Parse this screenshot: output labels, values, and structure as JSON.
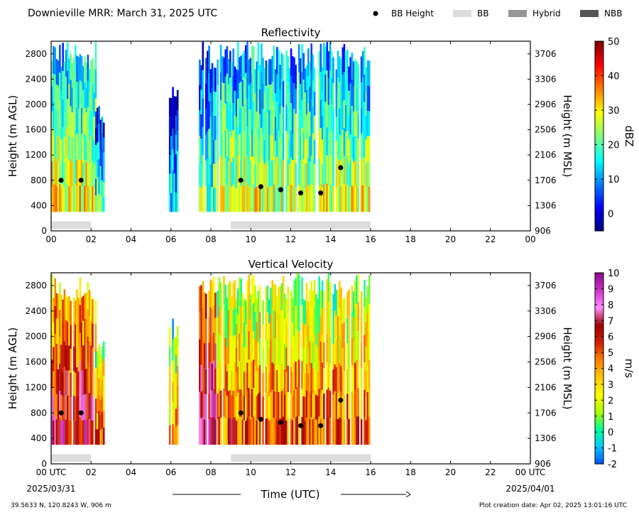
{
  "header": {
    "title": "Downieville MRR:  March 31, 2025 UTC",
    "legend": [
      {
        "label": "BB Height",
        "kind": "dot",
        "color": "#000000"
      },
      {
        "label": "BB",
        "kind": "bar",
        "color": "#dcdcdc"
      },
      {
        "label": "Hybrid",
        "kind": "bar",
        "color": "#969696"
      },
      {
        "label": "NBB",
        "kind": "bar",
        "color": "#555555"
      }
    ]
  },
  "footer": {
    "location": "39.5633 N, 120.8243 W, 906 m",
    "creation_date": "Plot creation date: Apr 02, 2025 13:01:16 UTC",
    "start_date": "2025/03/31",
    "end_date": "2025/04/01",
    "xlabel": "Time (UTC)"
  },
  "chart_data": [
    {
      "type": "heatmap",
      "title": "Reflectivity",
      "ylabel": "Height (m AGL)",
      "ylabel_right": "Height (m MSL)",
      "xlim": [
        0,
        24
      ],
      "ylim": [
        0,
        3000
      ],
      "x_ticks": [
        "00",
        "02",
        "04",
        "06",
        "08",
        "10",
        "12",
        "14",
        "16",
        "18",
        "20",
        "22",
        "00"
      ],
      "y_ticks": [
        "0",
        "400",
        "800",
        "1200",
        "1600",
        "2000",
        "2400",
        "2800"
      ],
      "y_ticks_right": [
        "906",
        "1306",
        "1706",
        "2106",
        "2506",
        "2906",
        "3306",
        "3706"
      ],
      "colorbar": {
        "label": "dBZ",
        "min": -5,
        "max": 50,
        "ticks": [
          "0",
          "10",
          "20",
          "30",
          "40",
          "50"
        ],
        "stops": [
          "#00007f",
          "#0000ff",
          "#007fff",
          "#00ffff",
          "#7fff7f",
          "#ffff00",
          "#ff7f00",
          "#ff0000",
          "#7f0000"
        ]
      },
      "bb_height_points": [
        {
          "x": 0.5,
          "y": 800
        },
        {
          "x": 1.5,
          "y": 800
        },
        {
          "x": 9.5,
          "y": 800
        },
        {
          "x": 10.5,
          "y": 700
        },
        {
          "x": 11.5,
          "y": 650
        },
        {
          "x": 12.5,
          "y": 600
        },
        {
          "x": 13.5,
          "y": 600
        },
        {
          "x": 14.5,
          "y": 1000
        }
      ],
      "bb_bars": [
        {
          "start": 0.0,
          "end": 2.0
        },
        {
          "start": 9.0,
          "end": 16.0
        }
      ],
      "echo_segments": [
        {
          "start": 0.0,
          "end": 2.2,
          "top": 3000,
          "value": 20
        },
        {
          "start": 2.2,
          "end": 2.6,
          "top": 2000,
          "value": 10
        },
        {
          "start": 5.9,
          "end": 6.3,
          "top": 2300,
          "value": 5
        },
        {
          "start": 7.4,
          "end": 8.2,
          "top": 3000,
          "value": 12
        },
        {
          "start": 8.3,
          "end": 15.9,
          "top": 3000,
          "value": 18
        }
      ]
    },
    {
      "type": "heatmap",
      "title": "Vertical Velocity",
      "ylabel": "Height (m AGL)",
      "ylabel_right": "Height (m MSL)",
      "xlim": [
        0,
        24
      ],
      "ylim": [
        0,
        3000
      ],
      "x_ticks": [
        "00 UTC",
        "02",
        "04",
        "06",
        "08",
        "10",
        "12",
        "14",
        "16",
        "18",
        "20",
        "22",
        "00 UTC"
      ],
      "y_ticks": [
        "0",
        "400",
        "800",
        "1200",
        "1600",
        "2000",
        "2400",
        "2800"
      ],
      "y_ticks_right": [
        "906",
        "1306",
        "1706",
        "2106",
        "2506",
        "2906",
        "3306",
        "3706"
      ],
      "colorbar": {
        "label": "m/s",
        "min": -2,
        "max": 10,
        "ticks": [
          "-2",
          "-1",
          "0",
          "1",
          "2",
          "3",
          "4",
          "5",
          "6",
          "7",
          "8",
          "9",
          "10"
        ],
        "stops": [
          "#0050ff",
          "#00c8ff",
          "#00ff9a",
          "#aaff00",
          "#ffff00",
          "#ffc800",
          "#ff7f00",
          "#d21e00",
          "#a00000",
          "#ff8cff",
          "#cc33cc",
          "#8c0a8c"
        ]
      },
      "bb_height_points": [
        {
          "x": 0.5,
          "y": 800
        },
        {
          "x": 1.5,
          "y": 800
        },
        {
          "x": 9.5,
          "y": 800
        },
        {
          "x": 10.5,
          "y": 700
        },
        {
          "x": 11.5,
          "y": 650
        },
        {
          "x": 12.5,
          "y": 600
        },
        {
          "x": 13.5,
          "y": 600
        },
        {
          "x": 14.5,
          "y": 1000
        }
      ],
      "bb_bars": [
        {
          "start": 0.0,
          "end": 2.0
        },
        {
          "start": 9.0,
          "end": 16.0
        }
      ],
      "echo_segments": [
        {
          "start": 0.0,
          "end": 2.2,
          "top": 3000,
          "value": 5
        },
        {
          "start": 2.2,
          "end": 2.6,
          "top": 2000,
          "value": 3
        },
        {
          "start": 5.9,
          "end": 6.3,
          "top": 2300,
          "value": 2
        },
        {
          "start": 7.4,
          "end": 8.2,
          "top": 3000,
          "value": 6
        },
        {
          "start": 8.3,
          "end": 15.9,
          "top": 3000,
          "value": 3
        }
      ]
    }
  ]
}
